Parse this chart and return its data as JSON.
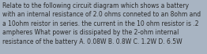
{
  "text": "Relate to the following circuit diagram which shows a battery\nwith an internal resistance of 2.0 ohms conneted to an 8ohm and\na 10ohm reistor in series. the current in the 10 ohm resistor is .2\nampheres What power is dissipated by the 2-ohm internal\nresistance of the battery A. 0.08W B. 0.8W C. 1.2W D. 6.5W",
  "bg_color": "#a8b4c2",
  "text_color": "#2a2a2a",
  "font_size": 5.5,
  "fig_width": 2.62,
  "fig_height": 0.69,
  "dpi": 100
}
